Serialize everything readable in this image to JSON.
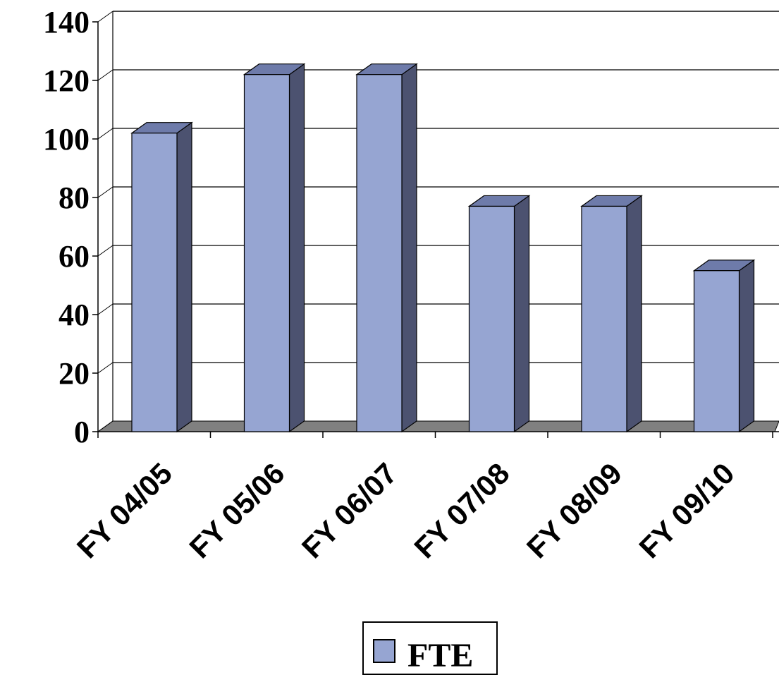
{
  "chart_data": {
    "type": "bar",
    "style": "3d-column",
    "categories": [
      "FY 04/05",
      "FY 05/06",
      "FY 06/07",
      "FY 07/08",
      "FY 08/09",
      "FY 09/10"
    ],
    "series": [
      {
        "name": "FTE",
        "values": [
          102,
          122,
          122,
          77,
          77,
          55
        ]
      }
    ],
    "ylim": [
      0,
      140
    ],
    "yticks": [
      "0",
      "20",
      "40",
      "60",
      "80",
      "100",
      "120",
      "140"
    ],
    "grid": true,
    "legend": "bottom-center",
    "colors": {
      "bar_front": "#96A5D2",
      "bar_side": "#4C5270",
      "bar_top": "#6E7BAA",
      "floor": "#808080",
      "grid": "#000000"
    }
  }
}
